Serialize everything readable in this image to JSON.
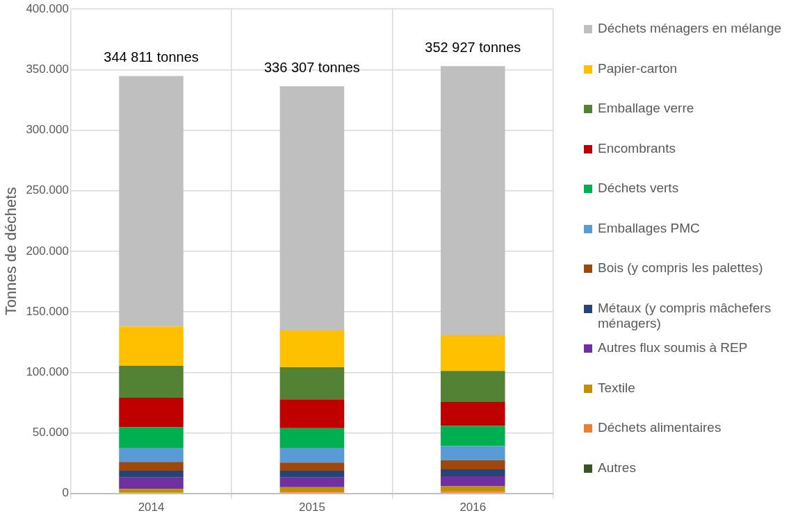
{
  "chart_data": {
    "type": "bar",
    "stacked": true,
    "ylabel": "Tonnes de déchets",
    "categories": [
      "2014",
      "2015",
      "2016"
    ],
    "series": [
      {
        "name": "Autres",
        "color": "#375623",
        "values": [
          0,
          0,
          0
        ]
      },
      {
        "name": "Déchets alimentaires",
        "color": "#ed7d31",
        "values": [
          0,
          1500,
          1700
        ]
      },
      {
        "name": "Textile",
        "color": "#bf9000",
        "values": [
          3600,
          3600,
          4100
        ]
      },
      {
        "name": "Autres flux soumis à REP",
        "color": "#7030a0",
        "values": [
          9500,
          8000,
          8300
        ]
      },
      {
        "name": "Métaux (y compris mâchefers ménagers)",
        "color": "#264478",
        "values": [
          5600,
          5600,
          5800
        ]
      },
      {
        "name": "Bois (y compris les palettes)",
        "color": "#9e480e",
        "values": [
          7300,
          6800,
          7500
        ]
      },
      {
        "name": "Emballages PMC",
        "color": "#5b9bd5",
        "values": [
          11600,
          12100,
          11700
        ]
      },
      {
        "name": "Déchets verts",
        "color": "#00b050",
        "values": [
          17000,
          16300,
          16700
        ]
      },
      {
        "name": "Encombrants",
        "color": "#c00000",
        "values": [
          24300,
          23800,
          19700
        ]
      },
      {
        "name": "Emballage verre",
        "color": "#548235",
        "values": [
          26500,
          26500,
          25700
        ]
      },
      {
        "name": "Papier-carton",
        "color": "#ffc000",
        "values": [
          32500,
          30300,
          29400
        ]
      },
      {
        "name": "Déchets ménagers en mélange",
        "color": "#bfbfbf",
        "values": [
          206911,
          201807,
          222327
        ]
      }
    ],
    "totals": [
      "344 811 tonnes",
      "336 307 tonnes",
      "352 927 tonnes"
    ],
    "ylim": [
      0,
      400000
    ],
    "yticks": [
      {
        "value": 0,
        "label": "0"
      },
      {
        "value": 50000,
        "label": "50.000"
      },
      {
        "value": 100000,
        "label": "100.000"
      },
      {
        "value": 150000,
        "label": "150.000"
      },
      {
        "value": 200000,
        "label": "200.000"
      },
      {
        "value": 250000,
        "label": "250.000"
      },
      {
        "value": 300000,
        "label": "300.000"
      },
      {
        "value": 350000,
        "label": "350.000"
      },
      {
        "value": 400000,
        "label": "400.000"
      }
    ],
    "grid": true,
    "legend": "right"
  }
}
